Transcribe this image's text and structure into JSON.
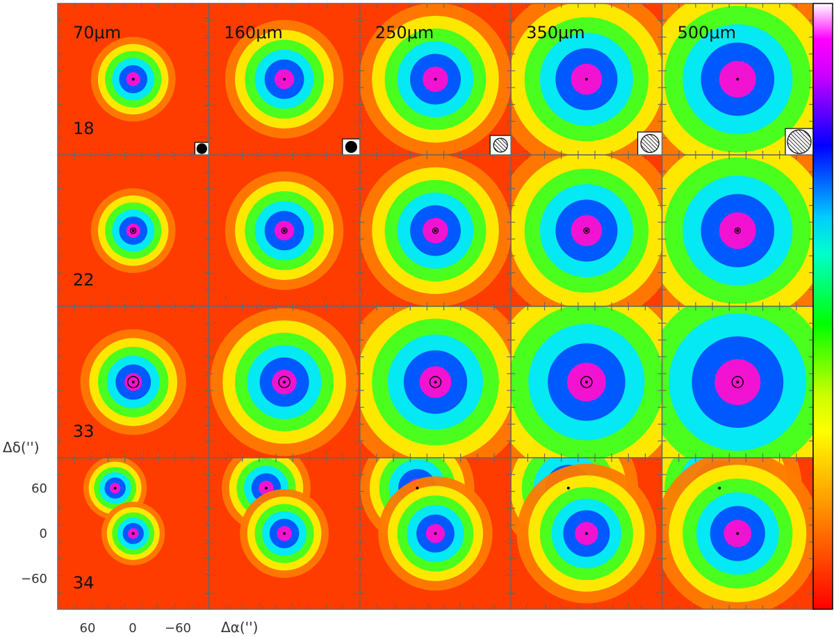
{
  "panel_grid": {
    "wavelengths": [
      "70μm",
      "160μm",
      "250μm",
      "350μm",
      "500μm"
    ],
    "sources": [
      "18",
      "22",
      "33",
      "34"
    ]
  },
  "axes": {
    "ra_label": "Δα('')",
    "dec_label": "Δδ('')",
    "ra_ticks": [
      "60",
      "0",
      "−60"
    ],
    "dec_ticks": [
      "60",
      "0",
      "−60"
    ]
  },
  "colorbar": {
    "colors": [
      "#ff0000",
      "#ff3300",
      "#ff6600",
      "#ff9900",
      "#ffcc00",
      "#ffff00",
      "#ccff00",
      "#66ff00",
      "#00ff00",
      "#00ff66",
      "#00ffcc",
      "#00ccff",
      "#0066ff",
      "#0000ff",
      "#6600ff",
      "#cc00ff",
      "#ff00ff",
      "#ffffff"
    ]
  },
  "palette": {
    "background": "#ff3c00",
    "frame": "#666666"
  }
}
